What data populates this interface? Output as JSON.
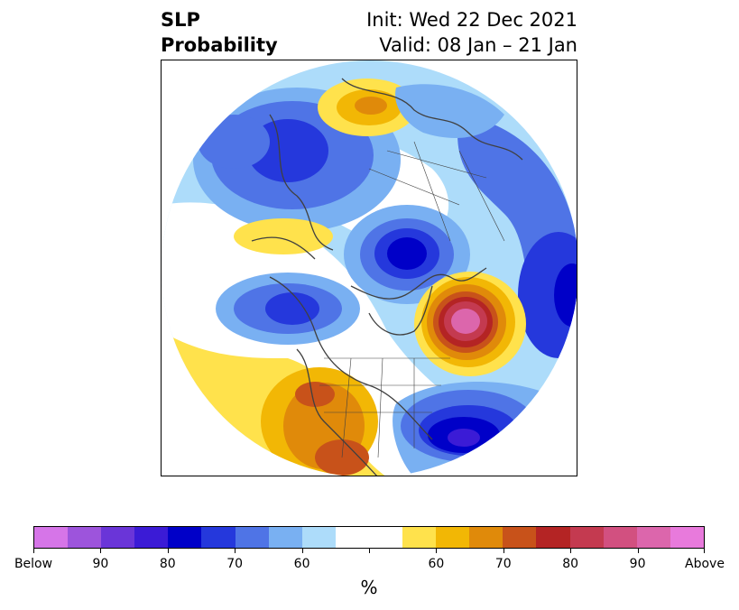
{
  "header": {
    "variable": "SLP",
    "product": "Probability",
    "init": "Init: Wed 22 Dec 2021",
    "valid": "Valid: 08 Jan – 21 Jan"
  },
  "map": {
    "projection": "north-polar-stereographic",
    "features": [
      "coastlines",
      "country-borders",
      "us-state-borders"
    ],
    "anomaly_centers": [
      {
        "label": "above",
        "region": "North Atlantic",
        "max_percent": 90
      },
      {
        "label": "above",
        "region": "Western North America",
        "max_percent": 75
      },
      {
        "label": "above",
        "region": "Northern Europe / Scandinavia",
        "max_percent": 65
      },
      {
        "label": "below",
        "region": "Arctic / Siberia coast",
        "max_percent": 80
      },
      {
        "label": "below",
        "region": "Central Asia",
        "max_percent": 80
      },
      {
        "label": "below",
        "region": "Western Atlantic / off US East coast",
        "max_percent": 80
      },
      {
        "label": "below",
        "region": "North Pacific / Aleutians",
        "max_percent": 70
      }
    ]
  },
  "colorbar": {
    "unit": "%",
    "colors": [
      "#d675e8",
      "#9d54dc",
      "#6a35d8",
      "#3b1bd6",
      "#0000c8",
      "#2538dc",
      "#4f74e6",
      "#79b0f2",
      "#addcfa",
      "#ffffff",
      "#ffffff",
      "#ffe24c",
      "#f2b705",
      "#e08a0a",
      "#c8521a",
      "#b42424",
      "#c43a50",
      "#d25080",
      "#dc66ac",
      "#e87adc"
    ],
    "labels": [
      "Below",
      "90",
      "80",
      "70",
      "60",
      "60",
      "70",
      "80",
      "90",
      "Above"
    ]
  }
}
